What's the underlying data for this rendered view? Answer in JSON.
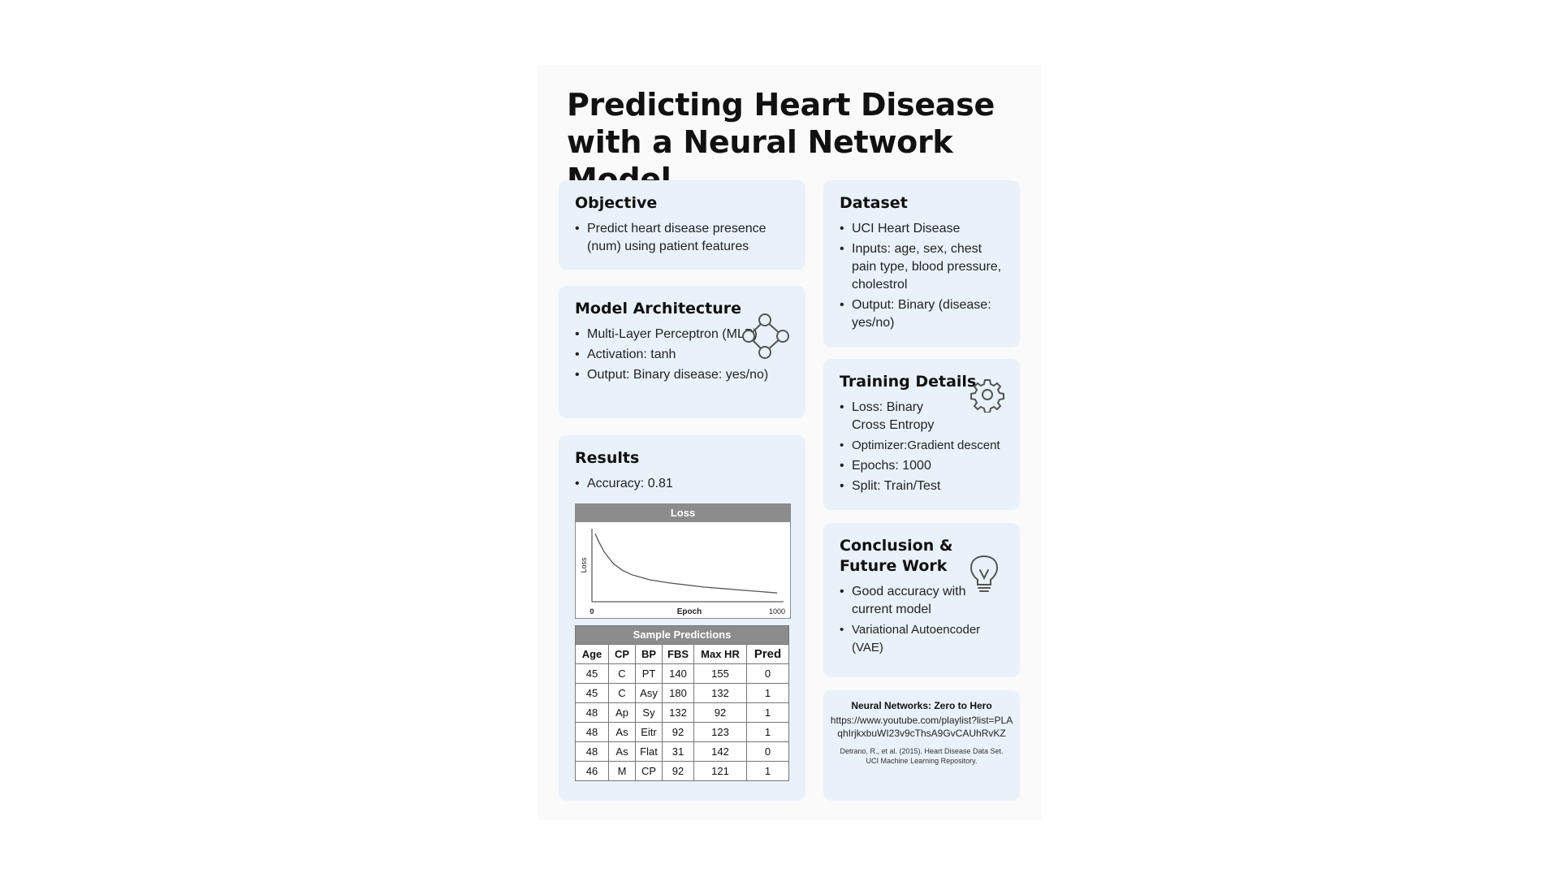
{
  "title": "Predicting Heart Disease with a Neural Network Model",
  "objective": {
    "heading": "Objective",
    "bullets": [
      "Predict heart disease presence (num) using patient features"
    ]
  },
  "model": {
    "heading": "Model Architecture",
    "bullets": [
      "Multi-Layer Perceptron (MLP)",
      "Activation: tanh",
      "Output: Binary  disease: yes/no)"
    ],
    "icon": "network-graph-icon"
  },
  "results": {
    "heading": "Results",
    "bullets": [
      "Accuracy: 0.81"
    ],
    "loss_title": "Loss",
    "table_title": "Sample Predictions",
    "table_headers": [
      "Age",
      "CP",
      "BP",
      "FBS",
      "Max HR",
      "Pred"
    ],
    "table_rows": [
      [
        "45",
        "C",
        "PT",
        "140",
        "155",
        "0"
      ],
      [
        "45",
        "C",
        "Asy",
        "180",
        "132",
        "1"
      ],
      [
        "48",
        "Ap",
        "Sy",
        "132",
        "92",
        "1"
      ],
      [
        "48",
        "As",
        "Eitr",
        "92",
        "123",
        "1"
      ],
      [
        "48",
        "As",
        "Flat",
        "31",
        "142",
        "0"
      ],
      [
        "46",
        "M",
        "CP",
        "92",
        "121",
        "1"
      ]
    ]
  },
  "dataset": {
    "heading": "Dataset",
    "bullets": [
      "UCI Heart Disease",
      "Inputs: age, sex, chest pain type, blood pressure, cholestrol",
      "Output: Binary (disease: yes/no)"
    ]
  },
  "training": {
    "heading": "Training Details",
    "bullets": [
      "Loss: Binary Cross Entropy",
      "Optimizer:Gradient descent",
      "Epochs: 1000",
      "Split: Train/Test"
    ],
    "icon": "gear-icon"
  },
  "conclusion": {
    "heading": "Conclusion & Future Work",
    "bullets": [
      "Good accuracy with current model",
      "Variational Autoencoder (VAE)"
    ],
    "icon": "lightbulb-icon"
  },
  "refs": {
    "title": "Neural Networks: Zero to Hero",
    "url": "https://www.youtube.com/playlist?list=PLAqhIrjkxbuWI23v9cThsA9GvCAUhRvKZ",
    "cite1": "Detrano, R., et al. (2015). Heart Disease Data Set.",
    "cite2": "UCI Machine Learning Repository."
  },
  "chart_data": {
    "type": "line",
    "title": "Loss",
    "xlabel": "Epoch",
    "ylabel": "Loss",
    "x_ticks": [
      "0",
      "1000"
    ],
    "xlim": [
      0,
      1000
    ],
    "ylim": [
      0,
      1
    ],
    "grid": false,
    "series": [
      {
        "x": [
          0,
          20,
          50,
          100,
          150,
          200,
          300,
          400,
          500,
          600,
          700,
          800,
          900,
          1000
        ],
        "values": [
          0.93,
          0.82,
          0.68,
          0.52,
          0.43,
          0.37,
          0.3,
          0.26,
          0.23,
          0.2,
          0.18,
          0.16,
          0.14,
          0.12
        ]
      }
    ]
  }
}
